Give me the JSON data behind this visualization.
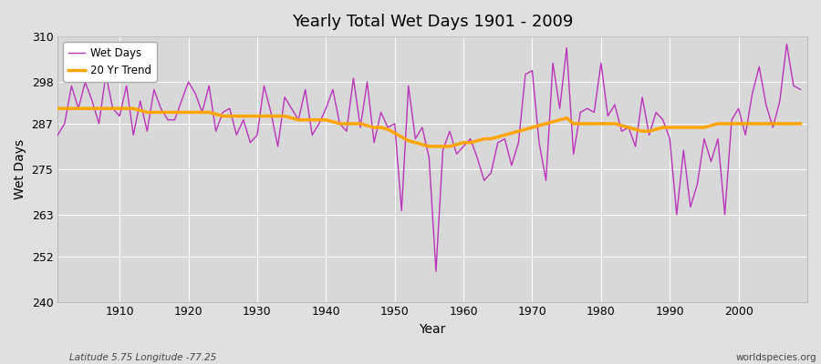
{
  "title": "Yearly Total Wet Days 1901 - 2009",
  "xlabel": "Year",
  "ylabel": "Wet Days",
  "footnote_left": "Latitude 5.75 Longitude -77.25",
  "footnote_right": "worldspecies.org",
  "legend_wet_days": "Wet Days",
  "legend_trend": "20 Yr Trend",
  "ylim": [
    240,
    310
  ],
  "yticks": [
    240,
    252,
    263,
    275,
    287,
    298,
    310
  ],
  "xticks": [
    1910,
    1920,
    1930,
    1940,
    1950,
    1960,
    1970,
    1980,
    1990,
    2000
  ],
  "xlim_min": 1901,
  "xlim_max": 2010,
  "wet_days_color": "#BB33BB",
  "trend_color": "#FFA500",
  "bg_color": "#E0E0E0",
  "plot_bg_color": "#D8D8D8",
  "grid_color": "#FFFFFF",
  "years": [
    1901,
    1902,
    1903,
    1904,
    1905,
    1906,
    1907,
    1908,
    1909,
    1910,
    1911,
    1912,
    1913,
    1914,
    1915,
    1916,
    1917,
    1918,
    1919,
    1920,
    1921,
    1922,
    1923,
    1924,
    1925,
    1926,
    1927,
    1928,
    1929,
    1930,
    1931,
    1932,
    1933,
    1934,
    1935,
    1936,
    1937,
    1938,
    1939,
    1940,
    1941,
    1942,
    1943,
    1944,
    1945,
    1946,
    1947,
    1948,
    1949,
    1950,
    1951,
    1952,
    1953,
    1954,
    1955,
    1956,
    1957,
    1958,
    1959,
    1960,
    1961,
    1962,
    1963,
    1964,
    1965,
    1966,
    1967,
    1968,
    1969,
    1970,
    1971,
    1972,
    1973,
    1974,
    1975,
    1976,
    1977,
    1978,
    1979,
    1980,
    1981,
    1982,
    1983,
    1984,
    1985,
    1986,
    1987,
    1988,
    1989,
    1990,
    1991,
    1992,
    1993,
    1994,
    1995,
    1996,
    1997,
    1998,
    1999,
    2000,
    2001,
    2002,
    2003,
    2004,
    2005,
    2006,
    2007,
    2008,
    2009
  ],
  "wet_days": [
    284,
    287,
    297,
    291,
    298,
    293,
    287,
    300,
    291,
    289,
    297,
    284,
    293,
    285,
    296,
    291,
    288,
    288,
    293,
    298,
    295,
    290,
    297,
    285,
    290,
    291,
    284,
    288,
    282,
    284,
    297,
    290,
    281,
    294,
    291,
    288,
    296,
    284,
    287,
    291,
    296,
    287,
    285,
    299,
    286,
    298,
    282,
    290,
    286,
    287,
    264,
    297,
    283,
    286,
    278,
    248,
    280,
    285,
    279,
    281,
    283,
    278,
    272,
    274,
    282,
    283,
    276,
    282,
    300,
    301,
    282,
    272,
    303,
    291,
    307,
    279,
    290,
    291,
    290,
    303,
    289,
    292,
    285,
    286,
    281,
    294,
    284,
    290,
    288,
    283,
    263,
    280,
    265,
    271,
    283,
    277,
    283,
    263,
    288,
    291,
    284,
    295,
    302,
    292,
    286,
    293,
    308,
    297,
    296
  ],
  "trend": [
    291.0,
    291.0,
    291.0,
    291.0,
    291.0,
    291.0,
    291.0,
    291.0,
    291.0,
    291.0,
    291.0,
    291.0,
    290.5,
    290.0,
    290.0,
    290.0,
    290.0,
    290.0,
    290.0,
    290.0,
    290.0,
    290.0,
    290.0,
    289.5,
    289.0,
    289.0,
    289.0,
    289.0,
    289.0,
    289.0,
    289.0,
    289.0,
    289.0,
    289.0,
    288.5,
    288.0,
    288.0,
    288.0,
    288.0,
    288.0,
    287.5,
    287.0,
    287.0,
    287.0,
    287.0,
    286.5,
    286.0,
    286.0,
    285.5,
    284.5,
    283.5,
    282.5,
    282.0,
    281.5,
    281.0,
    281.0,
    281.0,
    281.0,
    281.5,
    282.0,
    282.0,
    282.5,
    283.0,
    283.0,
    283.5,
    284.0,
    284.5,
    285.0,
    285.5,
    286.0,
    286.5,
    287.0,
    287.5,
    288.0,
    288.5,
    287.0,
    287.0,
    287.0,
    287.0,
    287.0,
    287.0,
    287.0,
    286.5,
    286.0,
    285.5,
    285.0,
    285.0,
    285.5,
    286.0,
    286.0,
    286.0,
    286.0,
    286.0,
    286.0,
    286.0,
    286.5,
    287.0,
    287.0,
    287.0,
    287.0,
    287.0,
    287.0,
    287.0,
    287.0,
    287.0,
    287.0,
    287.0,
    287.0,
    287.0
  ]
}
